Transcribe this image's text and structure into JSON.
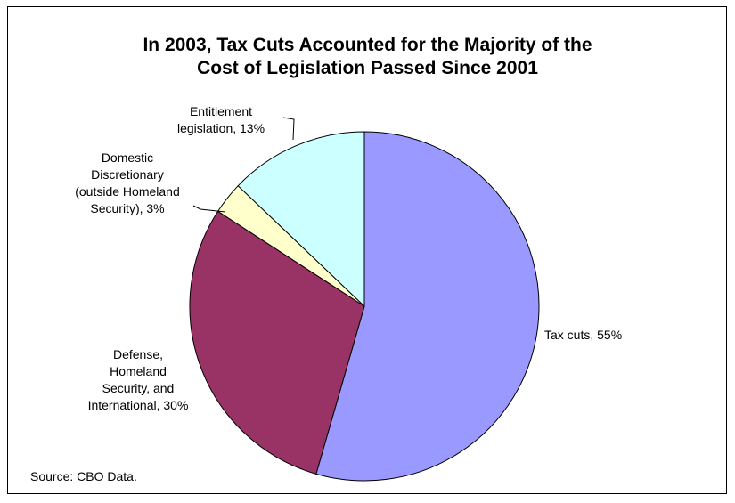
{
  "chart_data": {
    "type": "pie",
    "title_lines": [
      "In 2003, Tax Cuts Accounted for the Majority of the",
      "Cost of Legislation Passed Since 2001"
    ],
    "start_angle_deg": 0,
    "direction": "clockwise",
    "slices": [
      {
        "label_lines": [
          "Tax cuts, 55%"
        ],
        "value": 55,
        "color": "#9999ff"
      },
      {
        "label_lines": [
          "Defense,",
          "Homeland",
          "Security, and",
          "International, 30%"
        ],
        "value": 30,
        "color": "#993366"
      },
      {
        "label_lines": [
          "Domestic",
          "Discretionary",
          "(outside Homeland",
          "Security), 3%"
        ],
        "value": 3,
        "color": "#ffffcc"
      },
      {
        "label_lines": [
          "Entitlement",
          "legislation, 13%"
        ],
        "value": 13,
        "color": "#ccffff"
      }
    ],
    "source": "Source: CBO Data."
  }
}
